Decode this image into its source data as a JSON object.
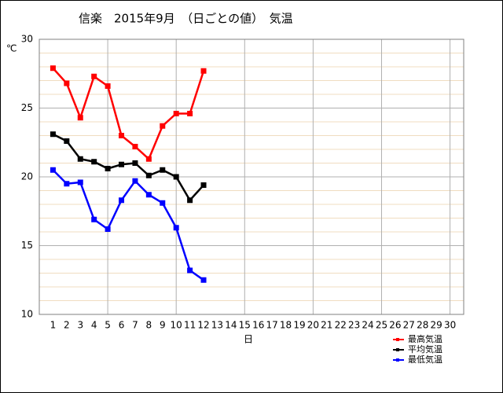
{
  "chart_data": {
    "type": "line",
    "title": "信楽　2015年9月　（日ごとの値）　気温",
    "y_label": "℃",
    "x_label": "日",
    "x": [
      1,
      2,
      3,
      4,
      5,
      6,
      7,
      8,
      9,
      10,
      11,
      12,
      13,
      14,
      15,
      16,
      17,
      18,
      19,
      20,
      21,
      22,
      23,
      24,
      25,
      26,
      27,
      28,
      29,
      30
    ],
    "xlim": [
      0,
      31
    ],
    "xticks": [
      1,
      2,
      3,
      4,
      5,
      6,
      7,
      8,
      9,
      10,
      11,
      12,
      13,
      14,
      15,
      16,
      17,
      18,
      19,
      20,
      21,
      22,
      23,
      24,
      25,
      26,
      27,
      28,
      29,
      30
    ],
    "ylim": [
      10,
      30
    ],
    "yticks": [
      10,
      15,
      20,
      25,
      30
    ],
    "grid": true,
    "legend": "lower right",
    "series": [
      {
        "name": "最高気温",
        "color": "#ff0000",
        "values": [
          27.9,
          26.8,
          24.3,
          27.3,
          26.6,
          23.0,
          22.2,
          21.3,
          23.7,
          24.6,
          24.6,
          27.7,
          null,
          null,
          null,
          null,
          null,
          null,
          null,
          null,
          null,
          null,
          null,
          null,
          null,
          null,
          null,
          null,
          null,
          null
        ]
      },
      {
        "name": "平均気温",
        "color": "#000000",
        "values": [
          23.1,
          22.6,
          21.3,
          21.1,
          20.6,
          20.9,
          21.0,
          20.1,
          20.5,
          20.0,
          18.3,
          19.4,
          null,
          null,
          null,
          null,
          null,
          null,
          null,
          null,
          null,
          null,
          null,
          null,
          null,
          null,
          null,
          null,
          null,
          null
        ]
      },
      {
        "name": "最低気温",
        "color": "#0000ff",
        "values": [
          20.5,
          19.5,
          19.6,
          16.9,
          16.2,
          18.3,
          19.7,
          18.7,
          18.1,
          16.3,
          13.2,
          12.5,
          null,
          null,
          null,
          null,
          null,
          null,
          null,
          null,
          null,
          null,
          null,
          null,
          null,
          null,
          null,
          null,
          null,
          null
        ]
      }
    ]
  }
}
